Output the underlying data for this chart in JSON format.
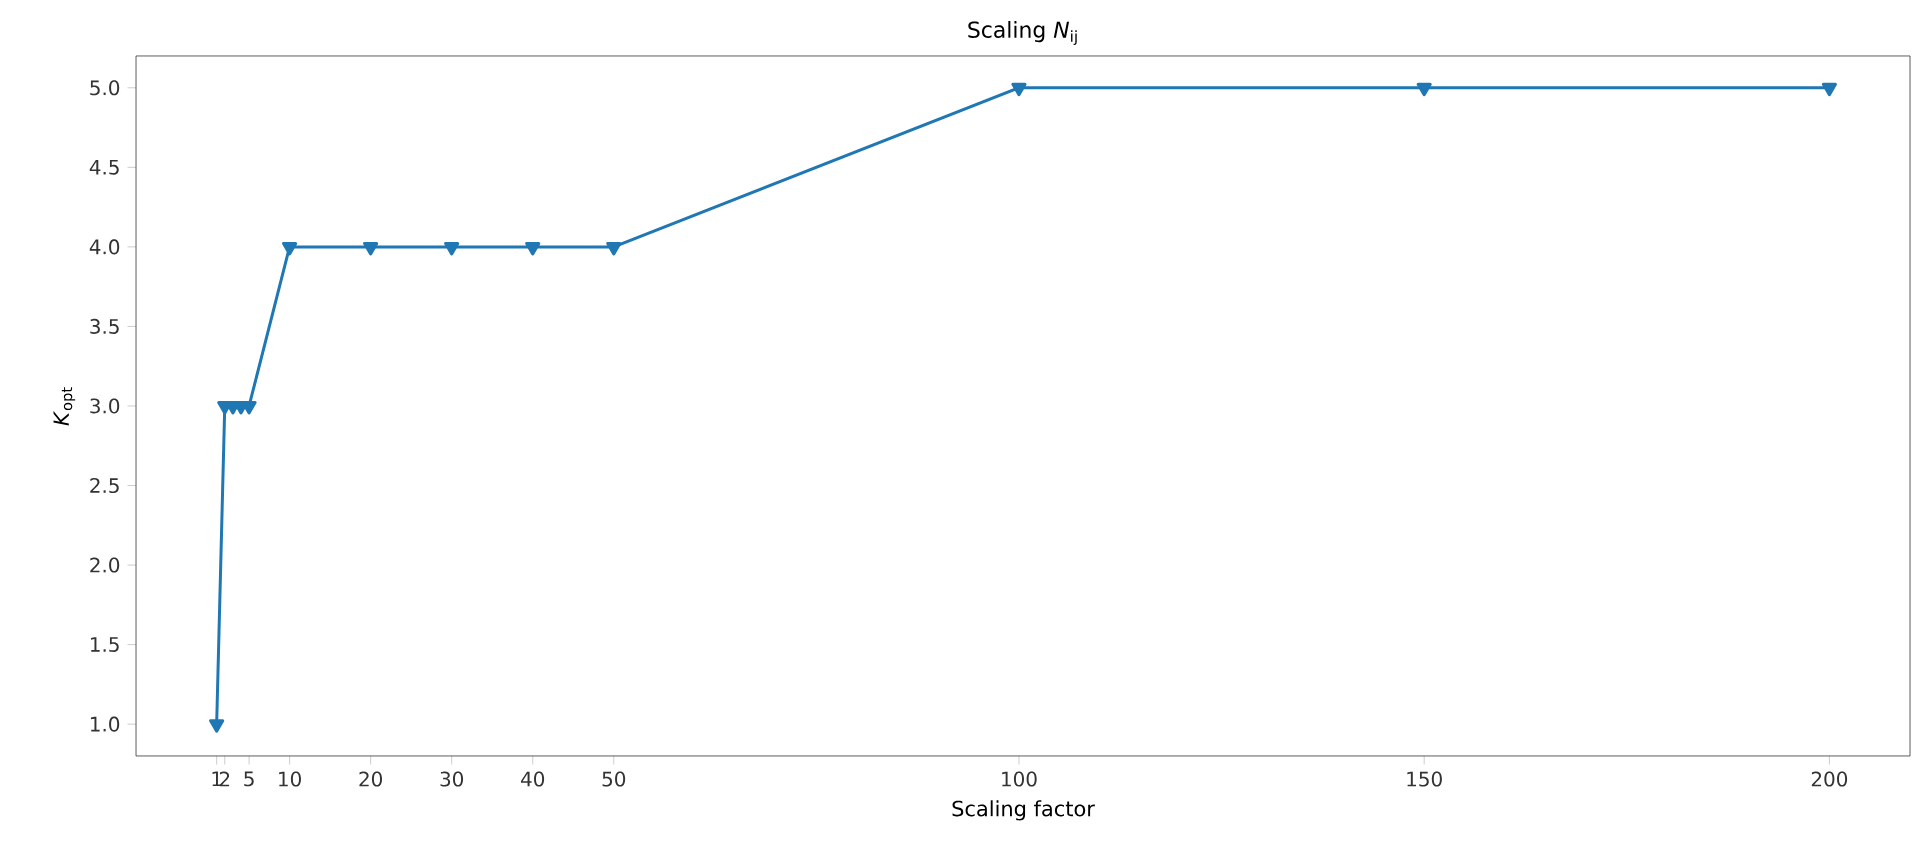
{
  "chart_data": {
    "type": "line",
    "title": "Scaling *N*$_{ij}$",
    "xlabel": "Scaling factor",
    "ylabel": "*K*$_{opt}$",
    "x": [
      1,
      2,
      3,
      4,
      5,
      10,
      20,
      30,
      40,
      50,
      100,
      150,
      200
    ],
    "series": [
      {
        "color": "#1f77b4",
        "values": [
          1,
          3,
          3,
          3,
          3,
          4,
          4,
          4,
          4,
          4,
          5,
          5,
          5
        ]
      }
    ],
    "xlim": [
      -8.95,
      209.95
    ],
    "ylim": [
      0.8,
      5.2
    ],
    "xticks": [
      1,
      2,
      5,
      10,
      20,
      30,
      40,
      50,
      100,
      150,
      200
    ],
    "yticks": [
      {
        "value": 1,
        "label": "1.0"
      },
      {
        "value": 1.5,
        "label": "1.5"
      },
      {
        "value": 2,
        "label": "2.0"
      },
      {
        "value": 2.5,
        "label": "2.5"
      },
      {
        "value": 3,
        "label": "3.0"
      },
      {
        "value": 3.5,
        "label": "3.5"
      },
      {
        "value": 4,
        "label": "4.0"
      },
      {
        "value": 4.5,
        "label": "4.5"
      },
      {
        "value": 5,
        "label": "5.0"
      }
    ],
    "marker": "triangle",
    "line_style": "solid"
  }
}
